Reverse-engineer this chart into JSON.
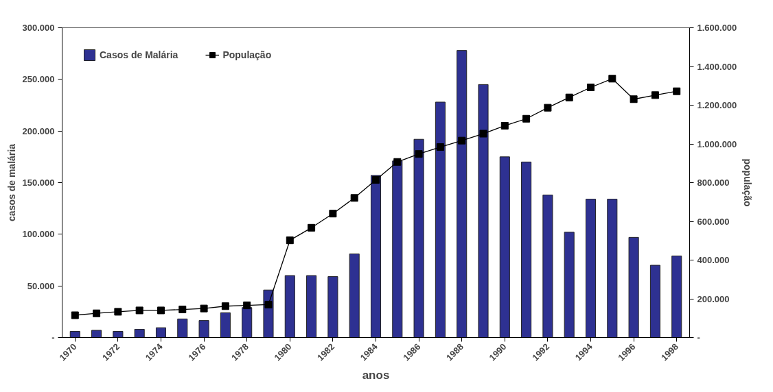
{
  "chart_data": {
    "type": "bar",
    "xlabel": "anos",
    "ylabel": "casos de malária",
    "y2label": "população",
    "x": [
      1970,
      1971,
      1972,
      1973,
      1974,
      1975,
      1976,
      1977,
      1978,
      1979,
      1980,
      1981,
      1982,
      1983,
      1984,
      1985,
      1986,
      1987,
      1988,
      1989,
      1990,
      1991,
      1992,
      1993,
      1994,
      1995,
      1996,
      1997,
      1998
    ],
    "xlim": [
      1969.4,
      1998.6
    ],
    "xticks": [
      1970,
      1972,
      1974,
      1976,
      1978,
      1980,
      1982,
      1984,
      1986,
      1988,
      1990,
      1992,
      1994,
      1996,
      1998
    ],
    "ylim": [
      0,
      300000
    ],
    "yticks": [
      {
        "value": 0,
        "label": "-"
      },
      {
        "value": 50000,
        "label": "50.000"
      },
      {
        "value": 100000,
        "label": "100.000"
      },
      {
        "value": 150000,
        "label": "150.000"
      },
      {
        "value": 200000,
        "label": "200.000"
      },
      {
        "value": 250000,
        "label": "250.000"
      },
      {
        "value": 300000,
        "label": "300.000"
      }
    ],
    "y2lim": [
      0,
      1600000
    ],
    "y2ticks": [
      {
        "value": 0,
        "label": "-"
      },
      {
        "value": 200000,
        "label": "200.000"
      },
      {
        "value": 400000,
        "label": "400.000"
      },
      {
        "value": 600000,
        "label": "600.000"
      },
      {
        "value": 800000,
        "label": "800.000"
      },
      {
        "value": 1000000,
        "label": "1.000.000"
      },
      {
        "value": 1200000,
        "label": "1.200.000"
      },
      {
        "value": 1400000,
        "label": "1.400.000"
      },
      {
        "value": 1600000,
        "label": "1.600.000"
      }
    ],
    "series": [
      {
        "name": "Casos de Malária",
        "color": "#2e3192",
        "values": [
          6000,
          7000,
          6000,
          8000,
          9500,
          18000,
          16500,
          24000,
          29000,
          46000,
          60000,
          60000,
          59000,
          81000,
          157000,
          171000,
          192000,
          228000,
          278000,
          245000,
          175000,
          170000,
          138000,
          102000,
          134000,
          134000,
          97000,
          70000,
          79000
        ]
      },
      {
        "name": "População",
        "type": "line",
        "axis": "y2",
        "color": "#000000",
        "marker": "square",
        "line_style": "solid",
        "values": [
          115000,
          125000,
          133000,
          140000,
          140000,
          145000,
          150000,
          162000,
          166000,
          170000,
          502000,
          567000,
          640000,
          721000,
          814000,
          907000,
          948000,
          984000,
          1017000,
          1053000,
          1094000,
          1130000,
          1187000,
          1240000,
          1292000,
          1337000,
          1231000,
          1252000,
          1272000
        ]
      }
    ],
    "legend": "top left",
    "grid": false
  }
}
